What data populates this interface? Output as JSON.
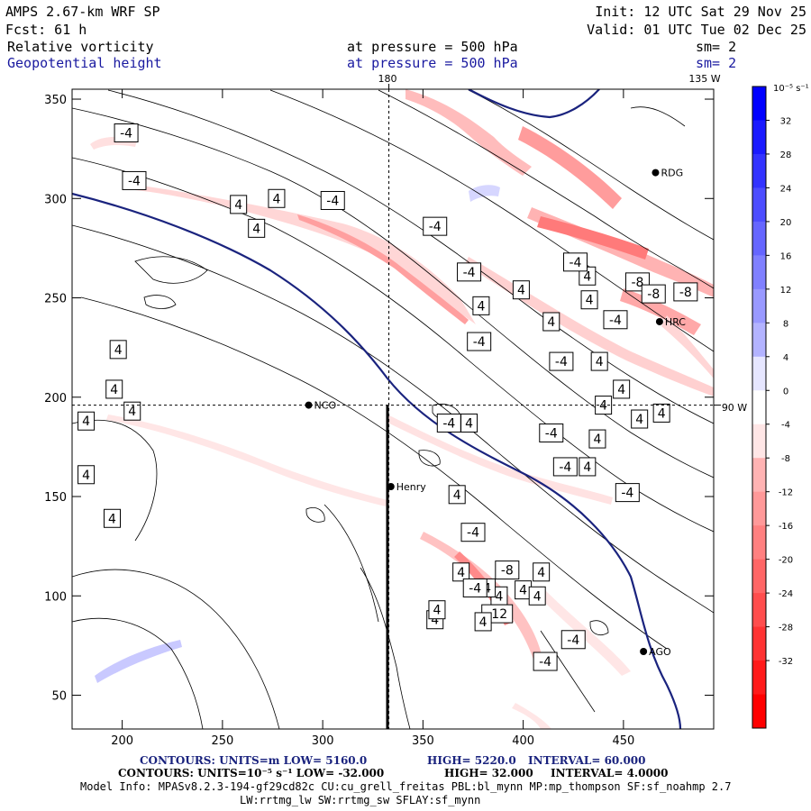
{
  "header": {
    "model": "AMPS 2.67-km WRF SP",
    "init": "Init: 12 UTC Sat 29 Nov 25",
    "fcst": "Fcst:    61 h",
    "valid": "Valid: 01 UTC Tue 02 Dec 25",
    "field1": "Relative vorticity",
    "field1_level": "at pressure =  500 hPa",
    "field1_sm": "sm= 2",
    "field2": "Geopotential height",
    "field2_level": "at pressure =  500 hPa",
    "field2_sm": "sm= 2"
  },
  "chart_data": {
    "type": "heatmap",
    "title": "AMPS 2.67-km WRF SP 500 hPa relative vorticity and geopotential height",
    "xlim": [
      175,
      495
    ],
    "ylim": [
      33,
      355
    ],
    "x_ticks": [
      200,
      250,
      300,
      350,
      400,
      450
    ],
    "y_ticks": [
      50,
      100,
      150,
      200,
      250,
      300,
      350
    ],
    "meridian_labels": {
      "top_180": "180",
      "top_135w": "135 W",
      "right_90w": "90 W"
    },
    "crosshair": {
      "x": 333,
      "y": 196
    },
    "colorbar": {
      "units": "10⁻⁵ s⁻¹",
      "ticks": [
        "32",
        "28",
        "24",
        "20",
        "16",
        "12",
        "8",
        "4",
        "0",
        "-4",
        "-8",
        "-12",
        "-16",
        "-20",
        "-24",
        "-28",
        "-32"
      ],
      "colors": [
        "#0000ff",
        "#1a1aff",
        "#3333ff",
        "#4d4dff",
        "#6666ff",
        "#8080ff",
        "#9999ff",
        "#b3b3ff",
        "#e6e6ff",
        "#ffffff",
        "#ffe6e6",
        "#ffb3b3",
        "#ff9999",
        "#ff8080",
        "#ff6666",
        "#ff4d4d",
        "#ff3333",
        "#ff1a1a",
        "#ff0000"
      ]
    },
    "stations": [
      {
        "name": "RDG",
        "x": 466,
        "y": 313
      },
      {
        "name": "HRC",
        "x": 468,
        "y": 238
      },
      {
        "name": "NCO",
        "x": 293,
        "y": 196
      },
      {
        "name": "Henry",
        "x": 334,
        "y": 155
      },
      {
        "name": "AGO",
        "x": 460,
        "y": 72
      }
    ],
    "height_contour_labels": [],
    "vorticity_labels": [
      {
        "t": "-4",
        "x": 202,
        "y": 333
      },
      {
        "t": "-4",
        "x": 206,
        "y": 309
      },
      {
        "t": "4",
        "x": 277,
        "y": 300
      },
      {
        "t": "-4",
        "x": 305,
        "y": 299
      },
      {
        "t": "4",
        "x": 258,
        "y": 297
      },
      {
        "t": "4",
        "x": 267,
        "y": 285
      },
      {
        "t": "-4",
        "x": 356,
        "y": 286
      },
      {
        "t": "-4",
        "x": 373,
        "y": 263
      },
      {
        "t": "4",
        "x": 432,
        "y": 261
      },
      {
        "t": "-4",
        "x": 426,
        "y": 268
      },
      {
        "t": "4",
        "x": 399,
        "y": 254
      },
      {
        "t": "4",
        "x": 433,
        "y": 249
      },
      {
        "t": "4",
        "x": 379,
        "y": 246
      },
      {
        "t": "-4",
        "x": 446,
        "y": 239
      },
      {
        "t": "4",
        "x": 414,
        "y": 238
      },
      {
        "t": "-8",
        "x": 457,
        "y": 258
      },
      {
        "t": "-8",
        "x": 465,
        "y": 252
      },
      {
        "t": "-8",
        "x": 481,
        "y": 253
      },
      {
        "t": "-4",
        "x": 378,
        "y": 228
      },
      {
        "t": "-4",
        "x": 419,
        "y": 218
      },
      {
        "t": "4",
        "x": 438,
        "y": 218
      },
      {
        "t": "4",
        "x": 449,
        "y": 204
      },
      {
        "t": "4",
        "x": 440,
        "y": 196
      },
      {
        "t": "4",
        "x": 469,
        "y": 192
      },
      {
        "t": "4",
        "x": 458,
        "y": 189
      },
      {
        "t": "4",
        "x": 437,
        "y": 179
      },
      {
        "t": "-4",
        "x": 363,
        "y": 187
      },
      {
        "t": "-4",
        "x": 414,
        "y": 182
      },
      {
        "t": "-4",
        "x": 421,
        "y": 165
      },
      {
        "t": "4",
        "x": 432,
        "y": 165
      },
      {
        "t": "-4",
        "x": 452,
        "y": 152
      },
      {
        "t": "4",
        "x": 367,
        "y": 151
      },
      {
        "t": "4",
        "x": 373,
        "y": 187
      },
      {
        "t": "-4",
        "x": 375,
        "y": 132
      },
      {
        "t": "4",
        "x": 195,
        "y": 139
      },
      {
        "t": "4",
        "x": 196,
        "y": 204
      },
      {
        "t": "4",
        "x": 198,
        "y": 224
      },
      {
        "t": "4",
        "x": 205,
        "y": 193
      },
      {
        "t": "4",
        "x": 182,
        "y": 188
      },
      {
        "t": "4",
        "x": 182,
        "y": 161
      },
      {
        "t": "-8",
        "x": 392,
        "y": 113
      },
      {
        "t": "4",
        "x": 369,
        "y": 112
      },
      {
        "t": "4",
        "x": 400,
        "y": 103
      },
      {
        "t": "4",
        "x": 388,
        "y": 100
      },
      {
        "t": "-12",
        "x": 387,
        "y": 91
      },
      {
        "t": "4",
        "x": 382,
        "y": 104
      },
      {
        "t": "4",
        "x": 380,
        "y": 87
      },
      {
        "t": "4",
        "x": 409,
        "y": 112
      },
      {
        "t": "4",
        "x": 407,
        "y": 100
      },
      {
        "t": "-4",
        "x": 376,
        "y": 104
      },
      {
        "t": "4",
        "x": 356,
        "y": 88
      },
      {
        "t": "-4",
        "x": 425,
        "y": 78
      },
      {
        "t": "-4",
        "x": 411,
        "y": 67
      },
      {
        "t": "4",
        "x": 357,
        "y": 93
      }
    ]
  },
  "footer": {
    "line1_prefix": "CONTOURS:  UNITS=m  LOW=  5160.0",
    "line1_high": "HIGH=  5220.0",
    "line1_interval": "INTERVAL=    60.000",
    "line2_prefix": "CONTOURS:  UNITS=10⁻⁵ s⁻¹  LOW= -32.000",
    "line2_high": "HIGH=  32.000",
    "line2_interval": "INTERVAL=   4.0000",
    "line3": "Model Info: MPASv8.2.3-194-gf29cd82c CU:cu_grell_freitas PBL:bl_mynn MP:mp_thompson SF:sf_noahmp 2.7",
    "line4": "LW:rrtmg_lw SW:rrtmg_sw SFLAY:sf_mynn"
  }
}
